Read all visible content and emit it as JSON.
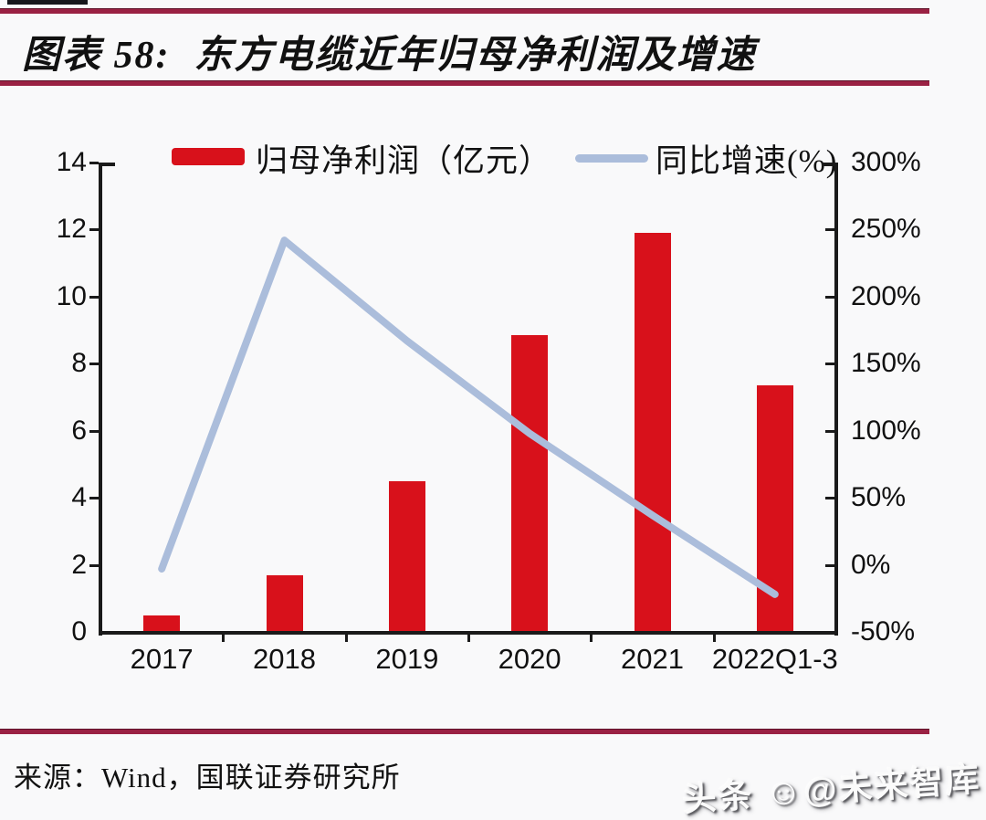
{
  "header": {
    "title_label": "图表 58:",
    "title_text": "东方电缆近年归母净利润及增速"
  },
  "legend": {
    "items": [
      {
        "label": "归母净利润（亿元）",
        "swatch": "bar",
        "color": "#d8111b"
      },
      {
        "label": "同比增速(%)",
        "swatch": "line",
        "color": "#abbddb"
      }
    ]
  },
  "chart_data": {
    "type": "bar+line combo",
    "categories": [
      "2017",
      "2018",
      "2019",
      "2020",
      "2021",
      "2022Q1-3"
    ],
    "series": [
      {
        "name": "归母净利润（亿元）",
        "type": "bar",
        "axis": "left",
        "color": "#d8111b",
        "values": [
          0.5,
          1.7,
          4.5,
          8.85,
          11.9,
          7.35
        ]
      },
      {
        "name": "同比增速(%)",
        "type": "line",
        "axis": "right",
        "color": "#abbddb",
        "values": [
          -3,
          242,
          167,
          98,
          37,
          -22
        ]
      }
    ],
    "left_axis": {
      "min": 0,
      "max": 14,
      "tick_labels": [
        "0",
        "2",
        "4",
        "6",
        "8",
        "10",
        "12",
        "14"
      ]
    },
    "right_axis": {
      "min": -50,
      "max": 300,
      "tick_labels": [
        "-50%",
        "0%",
        "50%",
        "100%",
        "150%",
        "200%",
        "250%",
        "300%"
      ]
    },
    "grid": false,
    "legend_position": "top"
  },
  "footer": {
    "source": "来源：Wind，国联证券研究所",
    "watermark_prefix": "头条",
    "watermark_face": "☺",
    "watermark_suffix": "@未来智库"
  },
  "colors": {
    "rule": "#9a2143",
    "bar": "#d8111b",
    "line": "#abbddb",
    "axis": "#1a1a1a"
  }
}
